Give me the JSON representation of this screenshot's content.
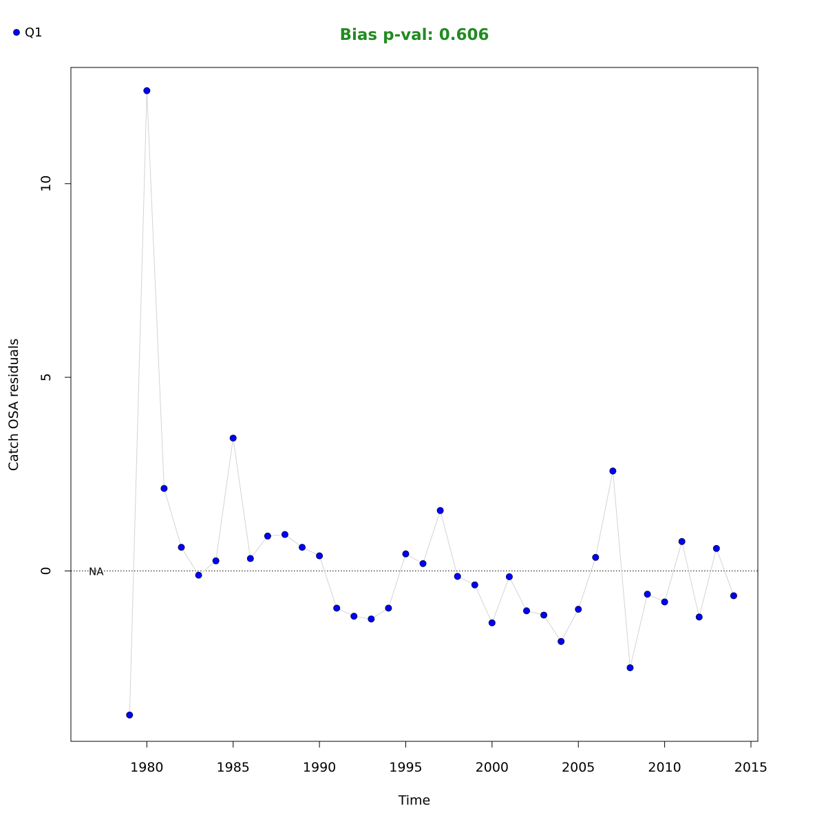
{
  "chart_data": {
    "type": "scatter",
    "title": "Bias p-val: 0.606",
    "title_color": "#228B22",
    "xlabel": "Time",
    "ylabel": "Catch OSA residuals",
    "xlim": [
      1975.6,
      2015.4
    ],
    "ylim": [
      -4.4,
      13.0
    ],
    "x_ticks": [
      1980,
      1985,
      1990,
      1995,
      2000,
      2005,
      2010,
      2015
    ],
    "y_ticks": [
      0,
      5,
      10
    ],
    "grid": false,
    "reference_line": {
      "y": 0,
      "style": "dotted",
      "label": "NA"
    },
    "legend": {
      "position": "top-left",
      "entries": [
        {
          "name": "Q1",
          "color": "#0000FF"
        }
      ]
    },
    "series": [
      {
        "name": "Q1",
        "marker_color": "#0000FF",
        "line_color": "#D3D3D3",
        "x": [
          1979,
          1980,
          1981,
          1982,
          1983,
          1984,
          1985,
          1986,
          1987,
          1988,
          1989,
          1990,
          1991,
          1992,
          1993,
          1994,
          1995,
          1996,
          1997,
          1998,
          1999,
          2000,
          2001,
          2002,
          2003,
          2004,
          2005,
          2006,
          2007,
          2008,
          2009,
          2010,
          2011,
          2012,
          2013,
          2014
        ],
        "values": [
          -3.72,
          12.4,
          2.13,
          0.61,
          -0.11,
          0.26,
          3.43,
          0.32,
          0.9,
          0.94,
          0.61,
          0.39,
          -0.96,
          -1.17,
          -1.24,
          -0.96,
          0.44,
          0.19,
          1.56,
          -0.14,
          -0.36,
          -1.34,
          -0.15,
          -1.03,
          -1.14,
          -1.82,
          -0.99,
          0.35,
          2.58,
          -2.5,
          -0.6,
          -0.8,
          0.76,
          -1.19,
          0.58,
          -0.64
        ]
      }
    ]
  }
}
